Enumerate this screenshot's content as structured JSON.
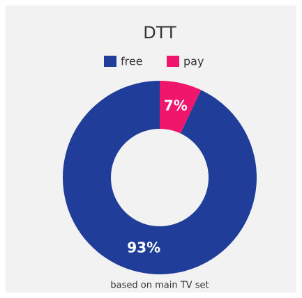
{
  "chart_data": {
    "type": "donut",
    "title": "DTT",
    "footer": "based on main TV set",
    "categories": [
      "free",
      "pay"
    ],
    "values": [
      93,
      7
    ],
    "value_labels": [
      "93%",
      "7%"
    ],
    "colors": [
      "#1f3d99",
      "#f0166b"
    ],
    "legend": "top"
  }
}
